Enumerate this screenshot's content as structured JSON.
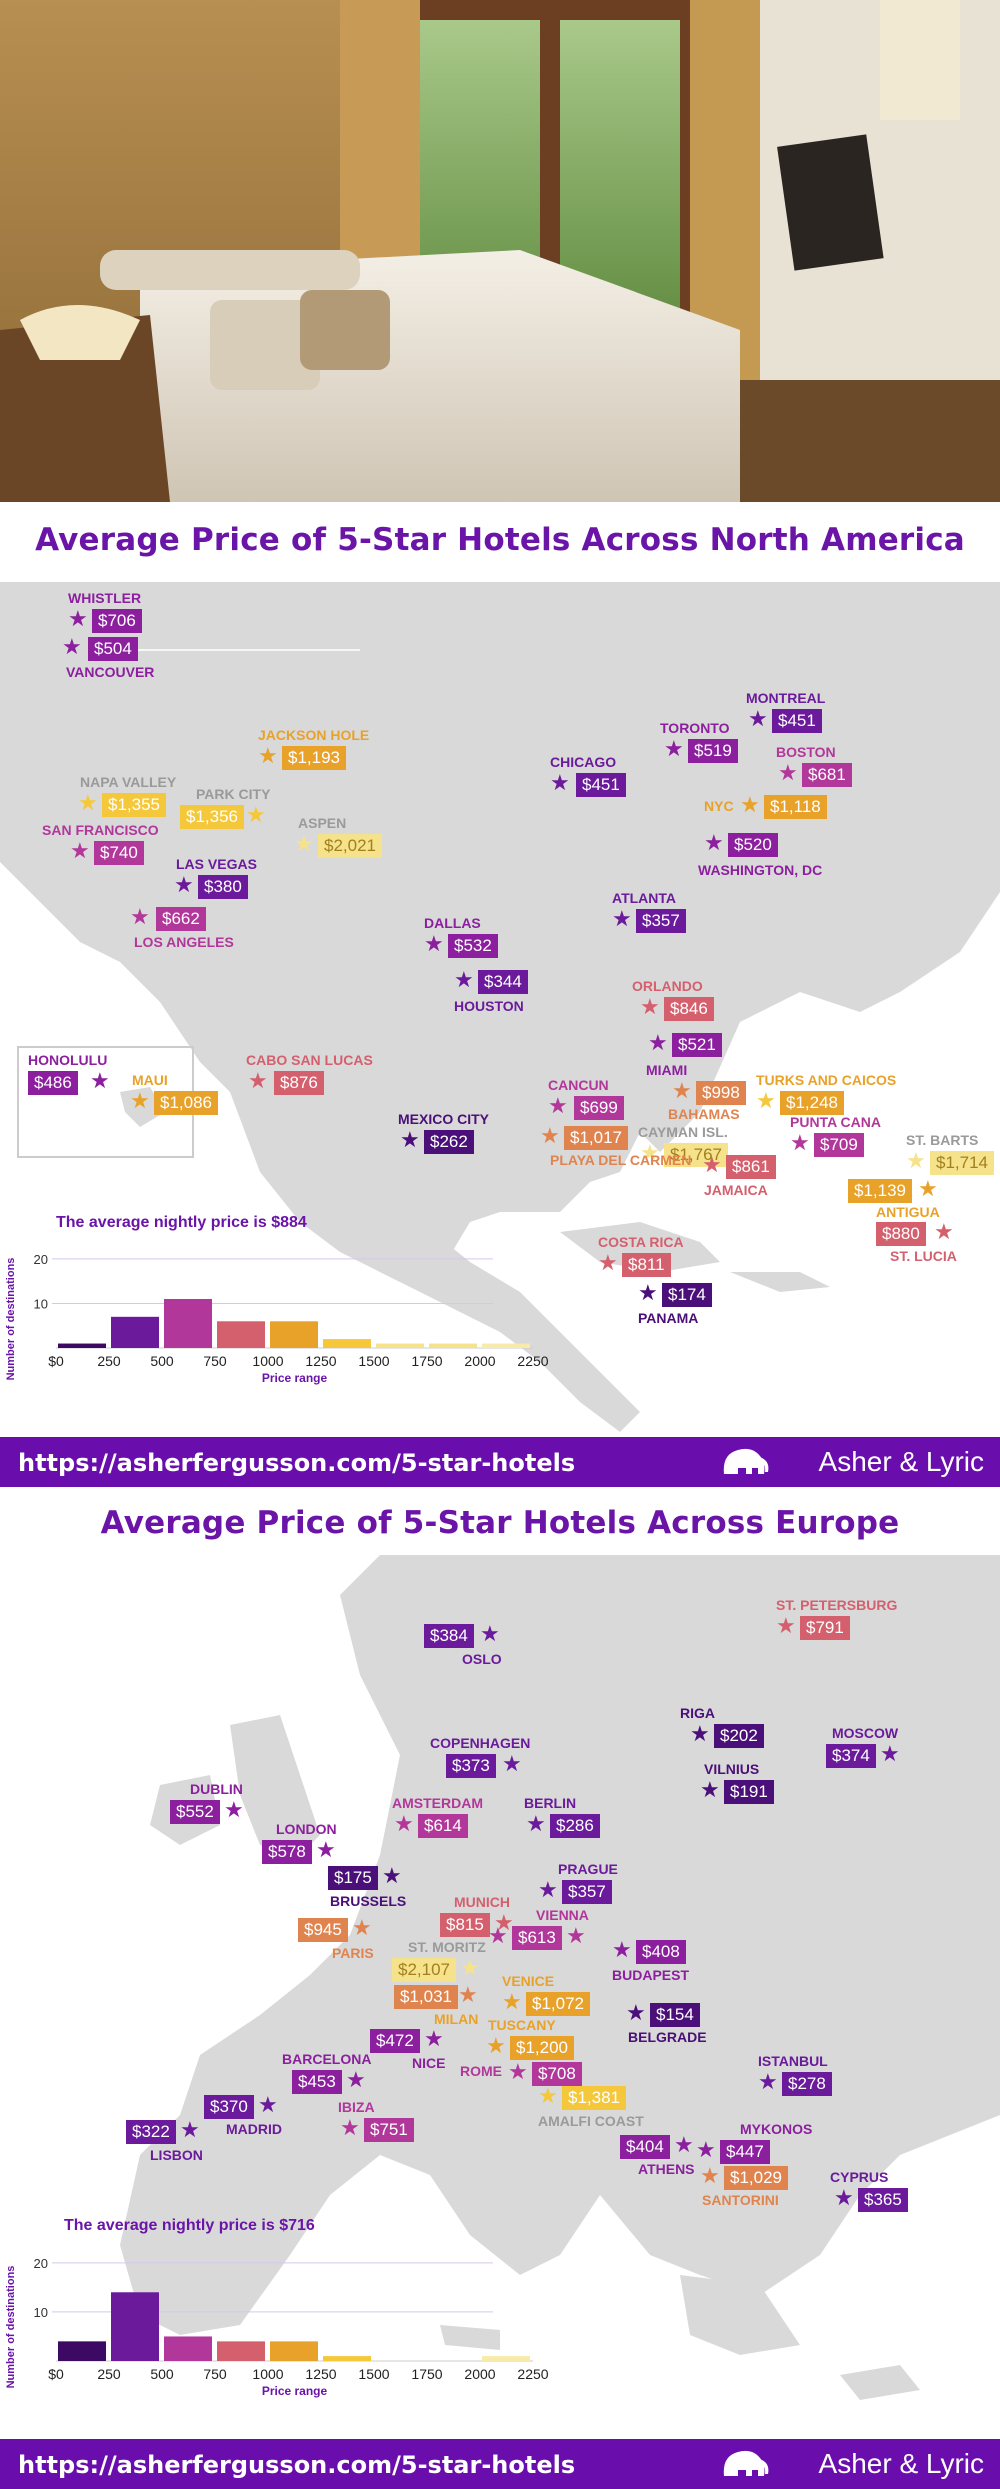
{
  "north_america": {
    "title": "Average Price of 5-Star Hotels Across North America",
    "avg_text": "The average nightly price is $884",
    "cities": [
      {
        "name": "WHISTLER",
        "price": "$706",
        "color": "#8b1f9e"
      },
      {
        "name": "VANCOUVER",
        "price": "$504",
        "color": "#8b1f9e"
      },
      {
        "name": "JACKSON HOLE",
        "price": "$1,193",
        "color": "#e8a22a"
      },
      {
        "name": "NAPA VALLEY",
        "price": "$1,355",
        "color": "#f4c83a"
      },
      {
        "name": "PARK CITY",
        "price": "$1,356",
        "color": "#f4c83a"
      },
      {
        "name": "ASPEN",
        "price": "$2,021",
        "color": "#f6e28a"
      },
      {
        "name": "SAN FRANCISCO",
        "price": "$740",
        "color": "#b2379a"
      },
      {
        "name": "LAS VEGAS",
        "price": "$380",
        "color": "#6a1a9a"
      },
      {
        "name": "LOS ANGELES",
        "price": "$662",
        "color": "#b2379a"
      },
      {
        "name": "DALLAS",
        "price": "$532",
        "color": "#8b1f9e"
      },
      {
        "name": "HOUSTON",
        "price": "$344",
        "color": "#6a1a9a"
      },
      {
        "name": "CHICAGO",
        "price": "$451",
        "color": "#6a1a9a"
      },
      {
        "name": "TORONTO",
        "price": "$519",
        "color": "#8b1f9e"
      },
      {
        "name": "MONTREAL",
        "price": "$451",
        "color": "#6a1a9a"
      },
      {
        "name": "BOSTON",
        "price": "$681",
        "color": "#b2379a"
      },
      {
        "name": "NYC",
        "price": "$1,118",
        "color": "#e8a22a"
      },
      {
        "name": "WASHINGTON, DC",
        "price": "$520",
        "color": "#8b1f9e"
      },
      {
        "name": "ATLANTA",
        "price": "$357",
        "color": "#6a1a9a"
      },
      {
        "name": "ORLANDO",
        "price": "$846",
        "color": "#d4606e"
      },
      {
        "name": "MIAMI",
        "price": "$521",
        "color": "#8b1f9e"
      },
      {
        "name": "BAHAMAS",
        "price": "$998",
        "color": "#e0844f"
      },
      {
        "name": "TURKS AND CAICOS",
        "price": "$1,248",
        "color": "#e8a22a"
      },
      {
        "name": "CAYMAN ISL.",
        "price": "$1,767",
        "color": "#f6e28a"
      },
      {
        "name": "HONOLULU",
        "price": "$486",
        "color": "#8b1f9e"
      },
      {
        "name": "MAUI",
        "price": "$1,086",
        "color": "#e8a22a"
      },
      {
        "name": "CABO SAN LUCAS",
        "price": "$876",
        "color": "#d4606e"
      },
      {
        "name": "MEXICO CITY",
        "price": "$262",
        "color": "#4a0f78"
      },
      {
        "name": "CANCUN",
        "price": "$699",
        "color": "#b2379a"
      },
      {
        "name": "PLAYA DEL CARMEN",
        "price": "$1,017",
        "color": "#e0844f"
      },
      {
        "name": "JAMAICA",
        "price": "$861",
        "color": "#d4606e"
      },
      {
        "name": "PUNTA CANA",
        "price": "$709",
        "color": "#b2379a"
      },
      {
        "name": "ST. BARTS",
        "price": "$1,714",
        "color": "#f6e28a"
      },
      {
        "name": "ANTIGUA",
        "price": "$1,139",
        "color": "#e8a22a"
      },
      {
        "name": "ST. LUCIA",
        "price": "$880",
        "color": "#d4606e"
      },
      {
        "name": "COSTA RICA",
        "price": "$811",
        "color": "#d4606e"
      },
      {
        "name": "PANAMA",
        "price": "$174",
        "color": "#4a0f78"
      }
    ]
  },
  "europe": {
    "title": "Average Price of 5-Star Hotels Across Europe",
    "avg_text": "The average nightly price is $716",
    "cities": [
      {
        "name": "OSLO",
        "price": "$384",
        "color": "#6a1a9a"
      },
      {
        "name": "ST. PETERSBURG",
        "price": "$791",
        "color": "#d4606e"
      },
      {
        "name": "RIGA",
        "price": "$202",
        "color": "#4a0f78"
      },
      {
        "name": "MOSCOW",
        "price": "$374",
        "color": "#6a1a9a"
      },
      {
        "name": "COPENHAGEN",
        "price": "$373",
        "color": "#6a1a9a"
      },
      {
        "name": "VILNIUS",
        "price": "$191",
        "color": "#4a0f78"
      },
      {
        "name": "DUBLIN",
        "price": "$552",
        "color": "#8b1f9e"
      },
      {
        "name": "LONDON",
        "price": "$578",
        "color": "#8b1f9e"
      },
      {
        "name": "AMSTERDAM",
        "price": "$614",
        "color": "#b2379a"
      },
      {
        "name": "BERLIN",
        "price": "$286",
        "color": "#6a1a9a"
      },
      {
        "name": "BRUSSELS",
        "price": "$175",
        "color": "#4a0f78"
      },
      {
        "name": "PRAGUE",
        "price": "$357",
        "color": "#6a1a9a"
      },
      {
        "name": "MUNICH",
        "price": "$815",
        "color": "#d4606e"
      },
      {
        "name": "VIENNA",
        "price": "$613",
        "color": "#b2379a"
      },
      {
        "name": "BUDAPEST",
        "price": "$408",
        "color": "#8b1f9e"
      },
      {
        "name": "PARIS",
        "price": "$945",
        "color": "#e0844f"
      },
      {
        "name": "ST. MORITZ",
        "price": "$2,107",
        "color": "#f6e28a"
      },
      {
        "name": "MILAN",
        "price": "$1,031",
        "color": "#e0844f"
      },
      {
        "name": "VENICE",
        "price": "$1,072",
        "color": "#e8a22a"
      },
      {
        "name": "BELGRADE",
        "price": "$154",
        "color": "#4a0f78"
      },
      {
        "name": "NICE",
        "price": "$472",
        "color": "#8b1f9e"
      },
      {
        "name": "TUSCANY",
        "price": "$1,200",
        "color": "#e8a22a"
      },
      {
        "name": "ROME",
        "price": "$708",
        "color": "#b2379a"
      },
      {
        "name": "BARCELONA",
        "price": "$453",
        "color": "#8b1f9e"
      },
      {
        "name": "MADRID",
        "price": "$370",
        "color": "#6a1a9a"
      },
      {
        "name": "LISBON",
        "price": "$322",
        "color": "#6a1a9a"
      },
      {
        "name": "IBIZA",
        "price": "$751",
        "color": "#b2379a"
      },
      {
        "name": "AMALFI COAST",
        "price": "$1,381",
        "color": "#f4c83a"
      },
      {
        "name": "ISTANBUL",
        "price": "$278",
        "color": "#6a1a9a"
      },
      {
        "name": "MYKONOS",
        "price": "$447",
        "color": "#8b1f9e"
      },
      {
        "name": "ATHENS",
        "price": "$404",
        "color": "#8b1f9e"
      },
      {
        "name": "SANTORINI",
        "price": "$1,029",
        "color": "#e0844f"
      },
      {
        "name": "CYPRUS",
        "price": "$365",
        "color": "#6a1a9a"
      }
    ]
  },
  "chart_data": [
    {
      "type": "bar",
      "title": "The average nightly price is $884",
      "xlabel": "Price range",
      "ylabel": "Number of destinations",
      "x_ticks": [
        "$0",
        "250",
        "500",
        "750",
        "1000",
        "1250",
        "1500",
        "1750",
        "2000",
        "2250"
      ],
      "y_ticks": [
        "10",
        "20"
      ],
      "ylim": [
        0,
        22
      ],
      "categories": [
        "0-250",
        "250-500",
        "500-750",
        "750-1000",
        "1000-1250",
        "1250-1500",
        "1500-1750",
        "1750-2000",
        "2000-2250"
      ],
      "values": [
        1,
        7,
        11,
        6,
        6,
        2,
        1,
        1,
        1
      ],
      "colors": [
        "#3d0a63",
        "#6a1a9a",
        "#b2379a",
        "#d4606e",
        "#e8a22a",
        "#f4c83a",
        "#f6e28a",
        "#f6e28a",
        "#f8eaa8"
      ],
      "grid": true
    },
    {
      "type": "bar",
      "title": "The average nightly price is $716",
      "xlabel": "Price range",
      "ylabel": "Number of destinations",
      "x_ticks": [
        "$0",
        "250",
        "500",
        "750",
        "1000",
        "1250",
        "1500",
        "1750",
        "2000",
        "2250"
      ],
      "y_ticks": [
        "10",
        "20"
      ],
      "ylim": [
        0,
        22
      ],
      "categories": [
        "0-250",
        "250-500",
        "500-750",
        "750-1000",
        "1000-1250",
        "1250-1500",
        "1500-1750",
        "1750-2000",
        "2000-2250"
      ],
      "values": [
        4,
        14,
        5,
        4,
        4,
        1,
        0,
        0,
        1
      ],
      "colors": [
        "#3d0a63",
        "#6a1a9a",
        "#b2379a",
        "#d4606e",
        "#e8a22a",
        "#f4c83a",
        "#f6e28a",
        "#f6e28a",
        "#f8eaa8"
      ],
      "grid": true
    }
  ],
  "footer": {
    "url": "https://asherfergusson.com/5-star-hotels",
    "brand": "Asher & Lyric"
  }
}
